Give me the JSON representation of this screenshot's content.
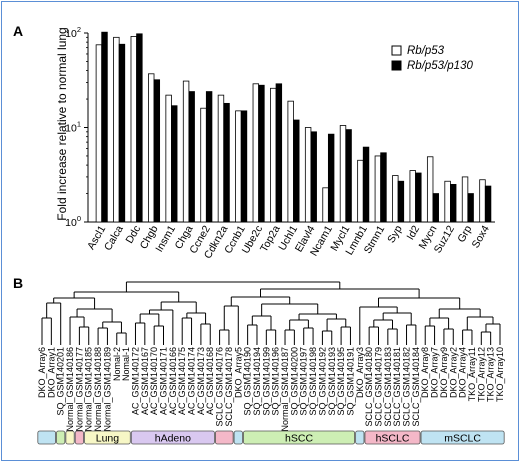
{
  "panels": {
    "a": "A",
    "b": "B"
  },
  "chart_data": [
    {
      "type": "bar",
      "scale": "log",
      "ylabel": "Fold increase relative to normal lung",
      "ylim": [
        1,
        100
      ],
      "yticks": [
        {
          "v": 1,
          "base": "10",
          "exp": "0"
        },
        {
          "v": 10,
          "base": "10",
          "exp": "1"
        },
        {
          "v": 100,
          "base": "10",
          "exp": "2"
        }
      ],
      "categories": [
        "Ascl1",
        "Calca",
        "Ddc",
        "Chgb",
        "Insm1",
        "Chga",
        "Ccne2",
        "Cdkn2a",
        "Ccnb1",
        "Ube2c",
        "Top2a",
        "Uchl1",
        "Elavl4",
        "Ncam1",
        "Mycl1",
        "Lmnb1",
        "Stmn1",
        "Syp",
        "Id2",
        "Mycn",
        "Suz12",
        "Grp",
        "Sox4"
      ],
      "series": [
        {
          "name": "Rb/p53",
          "fill": "#ffffff",
          "values": [
            75,
            90,
            92,
            37,
            22,
            31,
            16,
            22,
            15,
            29,
            26,
            19,
            10,
            2.3,
            10.5,
            4.5,
            5,
            3.1,
            3.5,
            4.9,
            2.7,
            3,
            2.8
          ]
        },
        {
          "name": "Rb/p53/p130",
          "fill": "#000000",
          "values": [
            102,
            76,
            98,
            32,
            17,
            24,
            24,
            18,
            15,
            28,
            29,
            12,
            9,
            8.5,
            9.5,
            6.2,
            5.4,
            2.7,
            3.3,
            2,
            2.5,
            2,
            2.4
          ]
        }
      ],
      "legend": "top-right"
    },
    {
      "type": "dendrogram",
      "leaves": [
        "DKO_Array6",
        "DKO_Array1",
        "SQ_GSM140201",
        "Normal_GSM140186",
        "Normal_GSM140177",
        "Normal_GSM140185",
        "Normal_GSM140188",
        "Normal_GSM140189",
        "Nomal-2",
        "Nomal-1",
        "AC_GSM140172",
        "AC_GSM140167",
        "AC_GSM140170",
        "AC_GSM140171",
        "AC_GSM140166",
        "AC_GSM140175",
        "AC_GSM140174",
        "AC_GSM140173",
        "AC_GSM140168",
        "SCLC_GSM140176",
        "SCLC_GSM140178",
        "DKO_Array5",
        "SQ_GSM140190",
        "SQ_GSM140194",
        "SQ_GSM140199",
        "SQ_GSM140196",
        "Normal_GSM140187",
        "SQ_GSM140200",
        "SQ_GSM140197",
        "SQ_GSM140198",
        "SQ_GSM140192",
        "SQ_GSM140193",
        "SQ_GSM140195",
        "SQ_GSM140191",
        "DKO_Array3",
        "SCLC_GSM140180",
        "SCLC_GSM140179",
        "SCLC_GSM140183",
        "SCLC_GSM140181",
        "SCLC_GSM140182",
        "SCLC_GSM140184",
        "DKO_Array8",
        "DKO_Array7",
        "DKO_Array9",
        "DKO_Array2",
        "DKO_Array4",
        "TKO_Array11",
        "TKO_Array12",
        "TKO_Array13",
        "TKO_Array10"
      ],
      "groups": [
        {
          "label": "",
          "color": "#bfe3f2",
          "from": 0,
          "to": 1
        },
        {
          "label": "",
          "color": "#cdeeb4",
          "from": 2,
          "to": 2
        },
        {
          "label": "",
          "color": "#f7f7c6",
          "from": 3,
          "to": 3
        },
        {
          "label": "",
          "color": "#f4b8c8",
          "from": 4,
          "to": 4
        },
        {
          "label": "Lung",
          "color": "#f7f7c6",
          "from": 5,
          "to": 9
        },
        {
          "label": "hAdeno",
          "color": "#d9c8f0",
          "from": 10,
          "to": 18
        },
        {
          "label": "",
          "color": "#f4b8c8",
          "from": 19,
          "to": 20
        },
        {
          "label": "",
          "color": "#bfe3f2",
          "from": 21,
          "to": 21
        },
        {
          "label": "hSCC",
          "color": "#cdeeb4",
          "from": 22,
          "to": 33
        },
        {
          "label": "",
          "color": "#bfe3f2",
          "from": 34,
          "to": 34
        },
        {
          "label": "hSCLC",
          "color": "#f4b8c8",
          "from": 35,
          "to": 40
        },
        {
          "label": "mSCLC",
          "color": "#bfe3f2",
          "from": 41,
          "to": 49
        }
      ]
    }
  ]
}
